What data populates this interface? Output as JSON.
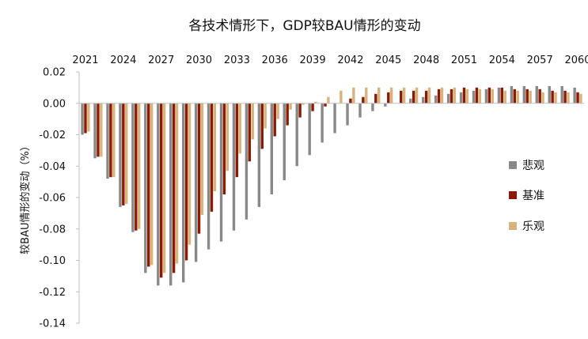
{
  "chart_data": {
    "type": "bar",
    "title": "各技术情形下，GDP较BAU情形的变动",
    "ylabel": "较BAU情形的变动（%）",
    "xlabel": "",
    "ylim": [
      -0.14,
      0.02
    ],
    "yticks": [
      "0.02",
      "0.00",
      "-0.02",
      "-0.04",
      "-0.06",
      "-0.08",
      "-0.10",
      "-0.12",
      "-0.14"
    ],
    "x_tick_labels": [
      "2021",
      "2024",
      "2027",
      "2030",
      "2033",
      "2036",
      "2039",
      "2042",
      "2045",
      "2048",
      "2051",
      "2054",
      "2057",
      "2060"
    ],
    "categories": [
      "2021",
      "2022",
      "2023",
      "2024",
      "2025",
      "2026",
      "2027",
      "2028",
      "2029",
      "2030",
      "2031",
      "2032",
      "2033",
      "2034",
      "2035",
      "2036",
      "2037",
      "2038",
      "2039",
      "2040",
      "2041",
      "2042",
      "2043",
      "2044",
      "2045",
      "2046",
      "2047",
      "2048",
      "2049",
      "2050",
      "2051",
      "2052",
      "2053",
      "2054",
      "2055",
      "2056",
      "2057",
      "2058",
      "2059",
      "2060"
    ],
    "series": [
      {
        "name": "悲观",
        "color": "#898989",
        "values": [
          -0.02,
          -0.035,
          -0.048,
          -0.066,
          -0.082,
          -0.108,
          -0.116,
          -0.116,
          -0.114,
          -0.101,
          -0.093,
          -0.088,
          -0.081,
          -0.074,
          -0.066,
          -0.058,
          -0.049,
          -0.04,
          -0.033,
          -0.025,
          -0.019,
          -0.014,
          -0.009,
          -0.005,
          -0.002,
          0.0,
          0.003,
          0.004,
          0.005,
          0.006,
          0.007,
          0.008,
          0.009,
          0.01,
          0.011,
          0.011,
          0.011,
          0.011,
          0.011,
          0.01
        ]
      },
      {
        "name": "基准",
        "color": "#8b1a00",
        "values": [
          -0.019,
          -0.034,
          -0.047,
          -0.065,
          -0.081,
          -0.104,
          -0.111,
          -0.108,
          -0.1,
          -0.083,
          -0.069,
          -0.058,
          -0.047,
          -0.037,
          -0.029,
          -0.021,
          -0.014,
          -0.009,
          -0.005,
          -0.002,
          0.0,
          0.003,
          0.004,
          0.006,
          0.007,
          0.008,
          0.008,
          0.008,
          0.009,
          0.009,
          0.01,
          0.01,
          0.01,
          0.01,
          0.009,
          0.009,
          0.009,
          0.008,
          0.008,
          0.007
        ]
      },
      {
        "name": "乐观",
        "color": "#d9b27c",
        "values": [
          -0.018,
          -0.034,
          -0.047,
          -0.064,
          -0.08,
          -0.103,
          -0.108,
          -0.102,
          -0.09,
          -0.071,
          -0.056,
          -0.043,
          -0.032,
          -0.023,
          -0.016,
          -0.01,
          -0.004,
          -0.001,
          0.001,
          0.004,
          0.008,
          0.01,
          0.01,
          0.01,
          0.01,
          0.01,
          0.01,
          0.01,
          0.01,
          0.01,
          0.009,
          0.009,
          0.009,
          0.008,
          0.008,
          0.008,
          0.007,
          0.007,
          0.007,
          0.006
        ]
      }
    ],
    "legend": {
      "position": "right"
    },
    "grid": false
  }
}
